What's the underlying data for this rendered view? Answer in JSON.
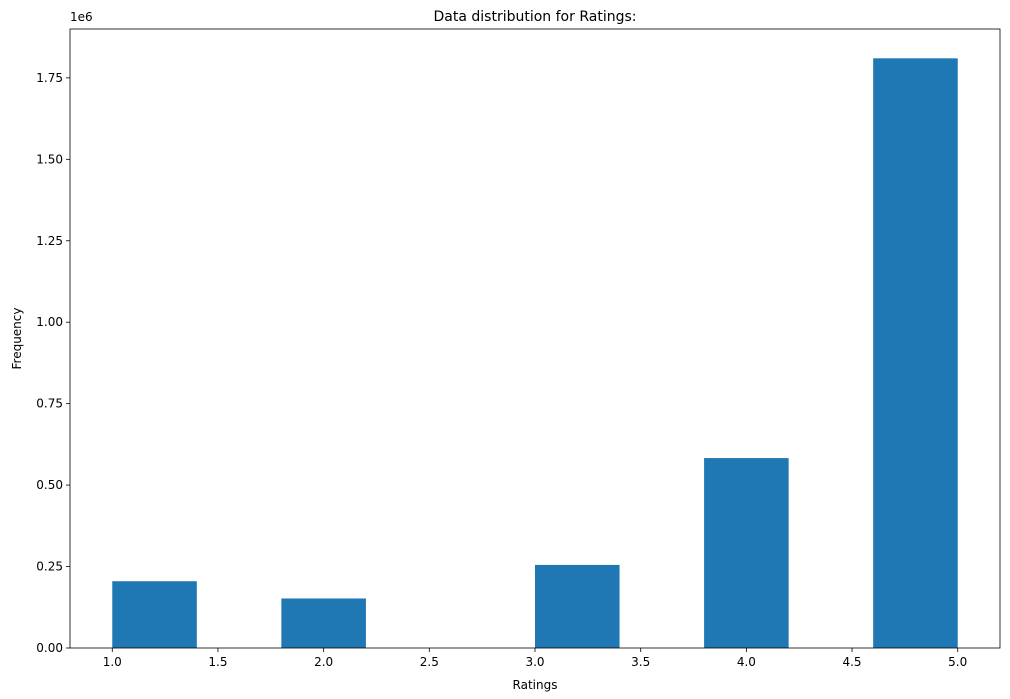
{
  "chart_data": {
    "type": "bar",
    "title": "Data distribution for Ratings:",
    "xlabel": "Ratings",
    "ylabel": "Frequency",
    "y_offset_label": "1e6",
    "xlim": [
      0.8,
      5.2
    ],
    "ylim": [
      0,
      1.9
    ],
    "xticks": [
      1.0,
      1.5,
      2.0,
      2.5,
      3.0,
      3.5,
      4.0,
      4.5,
      5.0
    ],
    "xtick_labels": [
      "1.0",
      "1.5",
      "2.0",
      "2.5",
      "3.0",
      "3.5",
      "4.0",
      "4.5",
      "5.0"
    ],
    "yticks": [
      0,
      0.25,
      0.5,
      0.75,
      1.0,
      1.25,
      1.5,
      1.75
    ],
    "ytick_labels": [
      "0.00",
      "0.25",
      "0.50",
      "0.75",
      "1.00",
      "1.25",
      "1.50",
      "1.75"
    ],
    "bin_edges": [
      1.0,
      1.4,
      1.8,
      2.2,
      2.6,
      3.0,
      3.4,
      3.8,
      4.2,
      4.6,
      5.0
    ],
    "values": [
      0.205,
      0.0,
      0.152,
      0.0,
      0.0,
      0.255,
      0.0,
      0.583,
      0.0,
      1.81
    ],
    "value_scale": 1000000,
    "grid": false,
    "bar_color": "#1f77b4"
  }
}
